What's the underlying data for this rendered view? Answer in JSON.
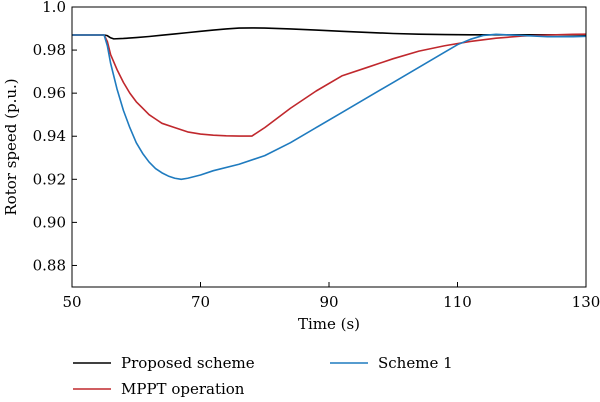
{
  "chart_data": {
    "type": "line",
    "title": "",
    "xlabel": "Time (s)",
    "ylabel": "Rotor speed (p.u.)",
    "xlim": [
      50,
      130
    ],
    "ylim": [
      0.87,
      1.0
    ],
    "xticks": [
      50,
      70,
      90,
      110,
      130
    ],
    "yticks": [
      0.88,
      0.9,
      0.92,
      0.94,
      0.96,
      0.98,
      1.0
    ],
    "xtick_labels": [
      "50",
      "70",
      "90",
      "110",
      "130"
    ],
    "ytick_labels": [
      "0.88",
      "0.90",
      "0.92",
      "0.94",
      "0.96",
      "0.98",
      "1.0"
    ],
    "grid": false,
    "legend_position": "below",
    "series": [
      {
        "name": "Proposed scheme",
        "color": "#000000",
        "x": [
          50,
          55,
          55.5,
          56,
          56.5,
          58,
          60,
          62,
          64,
          66,
          68,
          70,
          72,
          74,
          76,
          78,
          80,
          84,
          88,
          92,
          96,
          100,
          104,
          108,
          112,
          116,
          120,
          124,
          128,
          130
        ],
        "y": [
          0.987,
          0.987,
          0.9867,
          0.9857,
          0.9852,
          0.9854,
          0.9858,
          0.9863,
          0.9869,
          0.9875,
          0.9881,
          0.9887,
          0.9893,
          0.9898,
          0.9902,
          0.9903,
          0.9902,
          0.9898,
          0.9893,
          0.9887,
          0.9882,
          0.9877,
          0.9874,
          0.9872,
          0.9871,
          0.9871,
          0.9871,
          0.9871,
          0.9871,
          0.9871
        ]
      },
      {
        "name": "MPPT operation",
        "color": "#c0282d",
        "x": [
          50,
          55,
          55.5,
          56,
          57,
          58,
          59,
          60,
          61,
          62,
          63,
          64,
          66,
          68,
          70,
          72,
          74,
          76,
          78,
          80,
          84,
          88,
          92,
          96,
          100,
          104,
          108,
          112,
          116,
          120,
          124,
          128,
          130
        ],
        "y": [
          0.987,
          0.987,
          0.984,
          0.978,
          0.971,
          0.965,
          0.96,
          0.956,
          0.953,
          0.95,
          0.948,
          0.946,
          0.944,
          0.942,
          0.941,
          0.9405,
          0.9402,
          0.9401,
          0.9401,
          0.944,
          0.953,
          0.961,
          0.968,
          0.972,
          0.976,
          0.9795,
          0.982,
          0.984,
          0.9855,
          0.9865,
          0.987,
          0.9873,
          0.9874
        ]
      },
      {
        "name": "Scheme 1",
        "color": "#1f7bbf",
        "x": [
          50,
          55,
          55.5,
          56,
          57,
          58,
          59,
          60,
          61,
          62,
          63,
          64,
          65,
          66,
          67,
          68,
          70,
          72,
          76,
          80,
          84,
          88,
          92,
          96,
          100,
          104,
          108,
          110,
          112,
          114,
          116,
          120,
          124,
          128,
          130
        ],
        "y": [
          0.987,
          0.987,
          0.982,
          0.974,
          0.962,
          0.952,
          0.944,
          0.937,
          0.932,
          0.928,
          0.925,
          0.923,
          0.9215,
          0.9205,
          0.92,
          0.9205,
          0.922,
          0.924,
          0.927,
          0.931,
          0.937,
          0.944,
          0.951,
          0.958,
          0.965,
          0.972,
          0.979,
          0.9825,
          0.985,
          0.9868,
          0.9873,
          0.9868,
          0.9862,
          0.9862,
          0.9864
        ]
      }
    ]
  }
}
